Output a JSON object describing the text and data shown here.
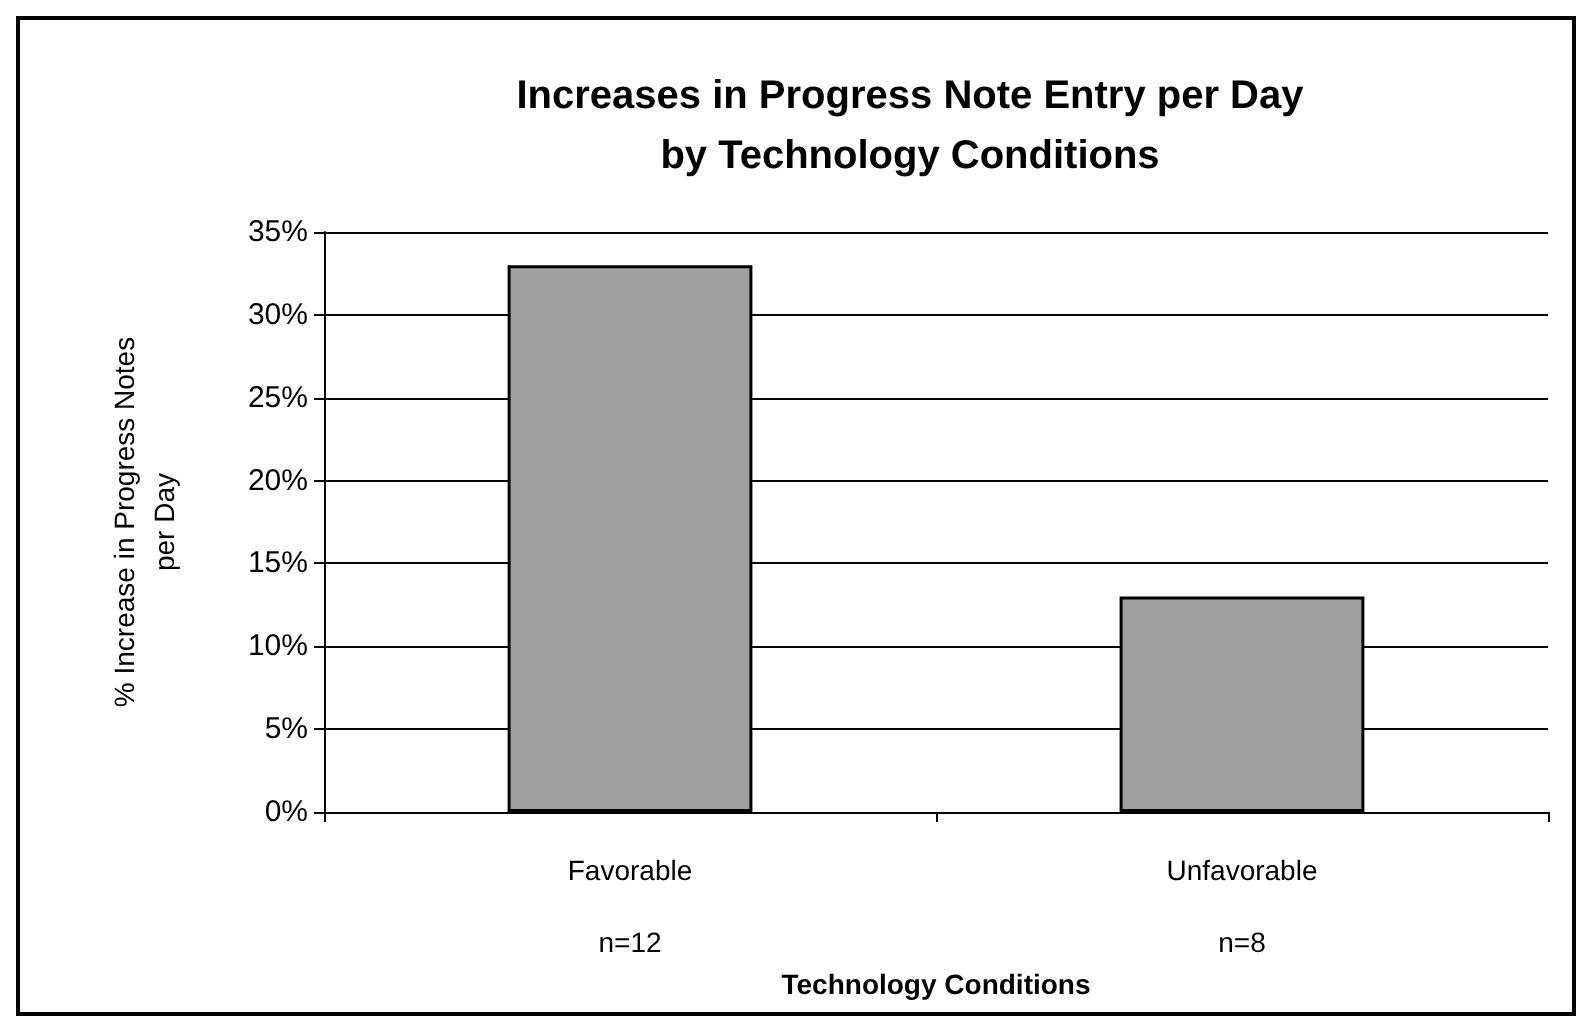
{
  "chart_data": {
    "type": "bar",
    "title": "Increases in Progress Note Entry per Day\nby Technology Conditions",
    "xlabel": "Technology Conditions",
    "ylabel": "% Increase in Progress Notes\nper Day",
    "categories": [
      "Favorable\n\nn=12",
      "Unfavorable\n\nn=8"
    ],
    "values": [
      33,
      13
    ],
    "color": "#a0a0a0",
    "ylim": [
      0,
      35
    ],
    "yticks": [
      {
        "value": 0,
        "label": "0%"
      },
      {
        "value": 5,
        "label": "5%"
      },
      {
        "value": 10,
        "label": "10%"
      },
      {
        "value": 15,
        "label": "15%"
      },
      {
        "value": 20,
        "label": "20%"
      },
      {
        "value": 25,
        "label": "25%"
      },
      {
        "value": 30,
        "label": "30%"
      },
      {
        "value": 35,
        "label": "35%"
      }
    ],
    "grid": "y"
  }
}
